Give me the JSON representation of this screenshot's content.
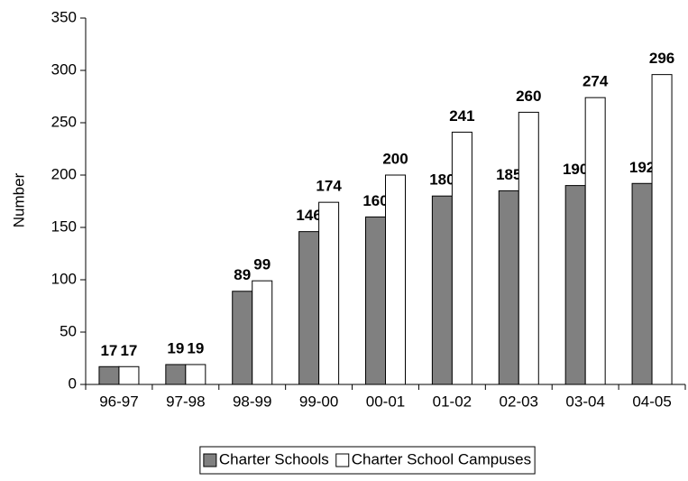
{
  "chart_data": {
    "type": "bar",
    "y_label": "Number",
    "categories": [
      "96-97",
      "97-98",
      "98-99",
      "99-00",
      "00-01",
      "01-02",
      "02-03",
      "03-04",
      "04-05"
    ],
    "series": [
      {
        "name": "Charter Schools",
        "color": "#808080",
        "values": [
          17,
          19,
          89,
          146,
          160,
          180,
          185,
          190,
          192
        ]
      },
      {
        "name": "Charter School Campuses",
        "color": "#ffffff",
        "values": [
          17,
          19,
          99,
          174,
          200,
          241,
          260,
          274,
          296
        ]
      }
    ],
    "ylim": [
      0,
      350
    ],
    "yticks": [
      0,
      50,
      100,
      150,
      200,
      250,
      300,
      350
    ],
    "legend": "bottom"
  }
}
